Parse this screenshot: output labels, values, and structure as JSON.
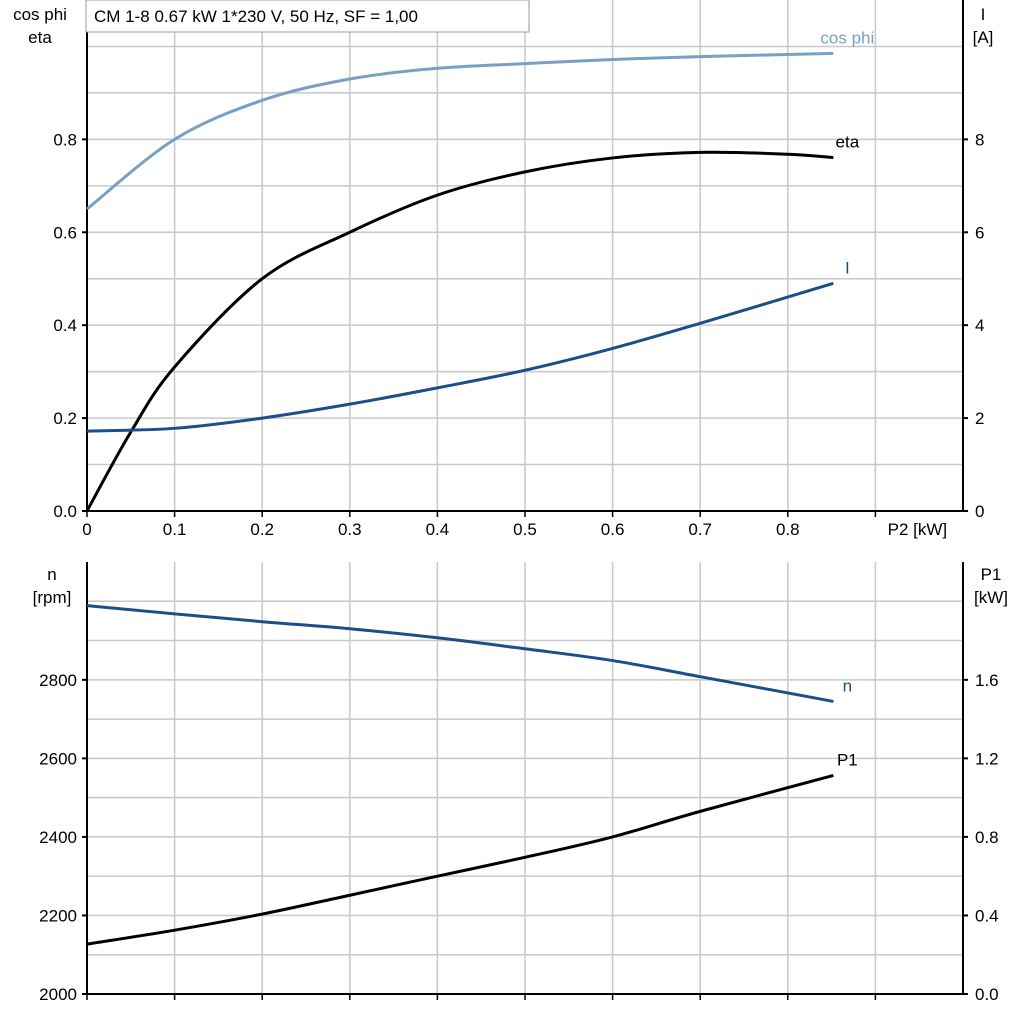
{
  "chart_data": [
    {
      "type": "line",
      "title": "CM 1-8   0.67 kW   1*230 V, 50 Hz, SF = 1,00",
      "xlabel": "P2 [kW]",
      "ylabel_left": [
        "cos phi",
        "eta"
      ],
      "ylabel_right": [
        "I",
        "[A]"
      ],
      "xlim": [
        0,
        1.0
      ],
      "ylim_left": [
        0,
        1.1
      ],
      "ylim_right": [
        0,
        11
      ],
      "x_ticks": [
        "0",
        "0.1",
        "0.2",
        "0.3",
        "0.4",
        "0.5",
        "0.6",
        "0.7",
        "0.8"
      ],
      "y_left_ticks": [
        "0.0",
        "0.2",
        "0.4",
        "0.6",
        "0.8"
      ],
      "y_right_ticks": [
        "0",
        "2",
        "4",
        "6",
        "8"
      ],
      "grid": true,
      "series": [
        {
          "name": "cos phi",
          "axis": "left",
          "color": "#7a9fc4",
          "x": [
            0,
            0.1,
            0.2,
            0.3,
            0.4,
            0.5,
            0.6,
            0.7,
            0.852
          ],
          "y": [
            0.65,
            0.8,
            0.884,
            0.93,
            0.953,
            0.963,
            0.972,
            0.978,
            0.985
          ]
        },
        {
          "name": "eta",
          "axis": "left",
          "color": "#000000",
          "x": [
            0,
            0.05,
            0.1,
            0.2,
            0.3,
            0.4,
            0.5,
            0.6,
            0.7,
            0.8,
            0.852
          ],
          "y": [
            0,
            0.17,
            0.31,
            0.5,
            0.6,
            0.68,
            0.73,
            0.76,
            0.772,
            0.768,
            0.761
          ]
        },
        {
          "name": "I",
          "axis": "right",
          "color": "#1b4f8a",
          "x": [
            0,
            0.1,
            0.2,
            0.3,
            0.4,
            0.5,
            0.6,
            0.7,
            0.852
          ],
          "y": [
            1.72,
            1.78,
            2.0,
            2.3,
            2.65,
            3.03,
            3.5,
            4.04,
            4.9
          ]
        }
      ]
    },
    {
      "type": "line",
      "xlim": [
        0,
        1.0
      ],
      "ylabel_left": [
        "n",
        "[rpm]"
      ],
      "ylabel_right": [
        "P1",
        "[kW]"
      ],
      "ylim_left": [
        2000,
        3100
      ],
      "ylim_right": [
        0,
        2.2
      ],
      "y_left_ticks": [
        "2000",
        "2200",
        "2400",
        "2600",
        "2800"
      ],
      "y_right_ticks": [
        "0.0",
        "0.4",
        "0.8",
        "1.2",
        "1.6"
      ],
      "grid": true,
      "series": [
        {
          "name": "n",
          "axis": "left",
          "color": "#1b4f8a",
          "x": [
            0,
            0.1,
            0.2,
            0.3,
            0.4,
            0.5,
            0.6,
            0.7,
            0.852
          ],
          "y": [
            2989,
            2968,
            2948,
            2930,
            2907,
            2879,
            2849,
            2808,
            2745
          ]
        },
        {
          "name": "P1",
          "axis": "right",
          "color": "#000000",
          "x": [
            0,
            0.1,
            0.2,
            0.3,
            0.4,
            0.5,
            0.6,
            0.7,
            0.852
          ],
          "y": [
            0.254,
            0.325,
            0.407,
            0.503,
            0.6,
            0.696,
            0.8,
            0.93,
            1.113
          ]
        }
      ]
    }
  ]
}
